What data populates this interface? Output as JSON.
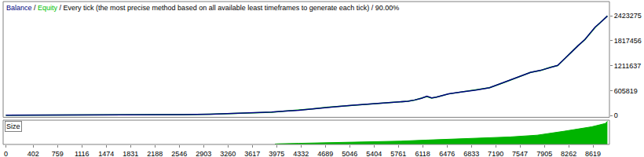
{
  "chart_data": [
    {
      "type": "line",
      "title": "Balance / Equity / Every tick (the most precise method based on all available least timeframes to generate each tick) / 90.00%",
      "series": [
        {
          "name": "Balance",
          "color": "#000080",
          "x": [
            0,
            400,
            800,
            1200,
            1600,
            1800,
            2000,
            2200,
            2600,
            3000,
            3300,
            3600,
            3900,
            4100,
            4300,
            4500,
            4700,
            4900,
            5100,
            5300,
            5500,
            5700,
            5900,
            6000,
            6100,
            6180,
            6250,
            6320,
            6500,
            6700,
            6900,
            7100,
            7300,
            7450,
            7550,
            7700,
            7850,
            8000,
            8100,
            8200,
            8300,
            8400,
            8500,
            8580,
            8650,
            8720,
            8780,
            8830
          ],
          "values": [
            10000,
            11000,
            12500,
            14000,
            16000,
            22000,
            18000,
            20000,
            25000,
            35000,
            48000,
            60000,
            85000,
            110000,
            130000,
            165000,
            200000,
            225000,
            255000,
            280000,
            300000,
            320000,
            350000,
            380000,
            420000,
            470000,
            430000,
            450000,
            530000,
            580000,
            620000,
            680000,
            800000,
            900000,
            960000,
            1050000,
            1100000,
            1180000,
            1220000,
            1380000,
            1550000,
            1700000,
            1850000,
            2000000,
            2150000,
            2250000,
            2350000,
            2420000
          ]
        },
        {
          "name": "Equity",
          "color": "#00c000",
          "x": [
            0,
            400,
            800,
            1200,
            1600,
            1800,
            2000,
            2200,
            2600,
            3000,
            3300,
            3600,
            3900,
            4100,
            4300,
            4500,
            4700,
            4900,
            5100,
            5300,
            5500,
            5700,
            5900,
            6000,
            6100,
            6180,
            6250,
            6320,
            6500,
            6700,
            6900,
            7100,
            7300,
            7450,
            7550,
            7700,
            7850,
            8000,
            8100,
            8200,
            8300,
            8400,
            8500,
            8580,
            8650,
            8720,
            8780,
            8830
          ],
          "values": [
            10000,
            11000,
            12500,
            14000,
            16000,
            21000,
            18000,
            20000,
            25000,
            35000,
            47000,
            60000,
            84000,
            110000,
            130000,
            164000,
            200000,
            224000,
            255000,
            279000,
            300000,
            319000,
            350000,
            378000,
            420000,
            465000,
            428000,
            450000,
            528000,
            580000,
            618000,
            680000,
            798000,
            900000,
            955000,
            1050000,
            1098000,
            1180000,
            1215000,
            1380000,
            1545000,
            1700000,
            1845000,
            2000000,
            2140000,
            2250000,
            2345000,
            2420000
          ]
        }
      ],
      "xlim": [
        -40,
        8860
      ],
      "ylim": [
        -40000,
        2770000
      ],
      "yticks": [
        0,
        605819,
        1211637,
        1817456,
        2423275
      ],
      "tick_labels": "y",
      "grid": false
    },
    {
      "type": "area",
      "title": "Size",
      "color": "#00b400",
      "x": [
        3950,
        4000,
        4300,
        4600,
        5000,
        5400,
        5800,
        6200,
        6600,
        7000,
        7400,
        7800,
        8000,
        8200,
        8400,
        8600,
        8800,
        8830
      ],
      "values": [
        0.2,
        0.3,
        0.5,
        0.7,
        0.9,
        1.2,
        1.5,
        2.0,
        2.4,
        2.8,
        3.4,
        4.2,
        5.0,
        6.0,
        7.0,
        8.0,
        9.5,
        10.5
      ],
      "xlim": [
        -40,
        8860
      ],
      "xticks": [
        0,
        402,
        759,
        1116,
        1474,
        1831,
        2188,
        2546,
        2903,
        3260,
        3617,
        3975,
        4332,
        4689,
        5046,
        5404,
        5761,
        6118,
        6476,
        6833,
        7190,
        7547,
        7905,
        8262,
        8619
      ],
      "ylim": [
        0,
        11
      ],
      "tick_labels": "x",
      "grid": false
    }
  ]
}
